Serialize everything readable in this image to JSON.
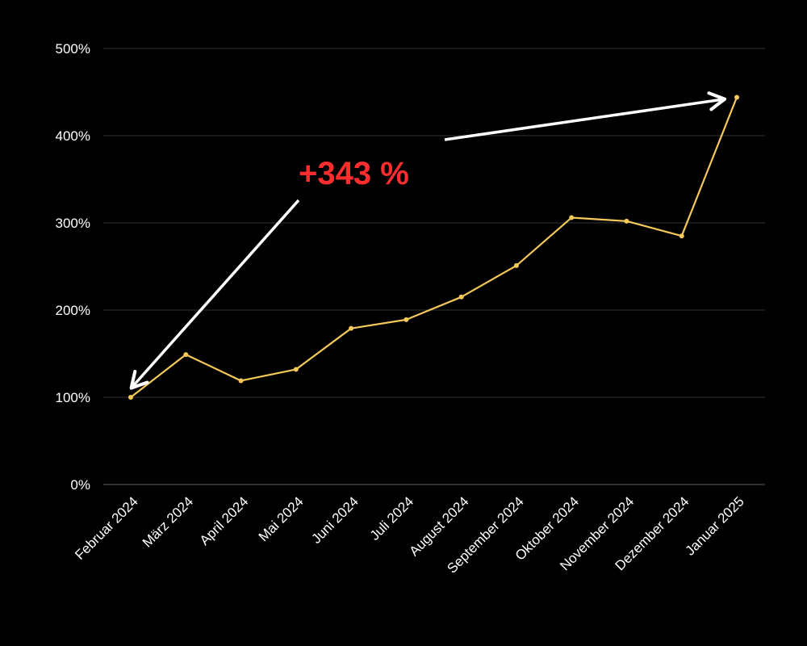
{
  "chart_data": {
    "type": "line",
    "categories": [
      "Februar 2024",
      "März 2024",
      "April 2024",
      "Mai 2024",
      "Juni 2024",
      "Juli 2024",
      "August 2024",
      "September 2024",
      "Oktober 2024",
      "November 2024",
      "Dezember 2024",
      "Januar 2025"
    ],
    "series": [
      {
        "values": [
          100,
          149,
          119,
          132,
          179,
          189,
          215,
          251,
          306,
          302,
          285,
          444
        ]
      }
    ],
    "ylim": [
      0,
      500
    ],
    "yticks": [
      0,
      100,
      200,
      300,
      400,
      500
    ],
    "ytick_labels": [
      "0%",
      "100%",
      "200%",
      "300%",
      "400%",
      "500%"
    ],
    "grid": true,
    "annotation": {
      "text": "+343 %",
      "color": "#ff2e2e"
    },
    "colors": {
      "background": "#000000",
      "line": "#f5c85a",
      "text": "#ffffff",
      "arrow": "#ffffff"
    }
  }
}
